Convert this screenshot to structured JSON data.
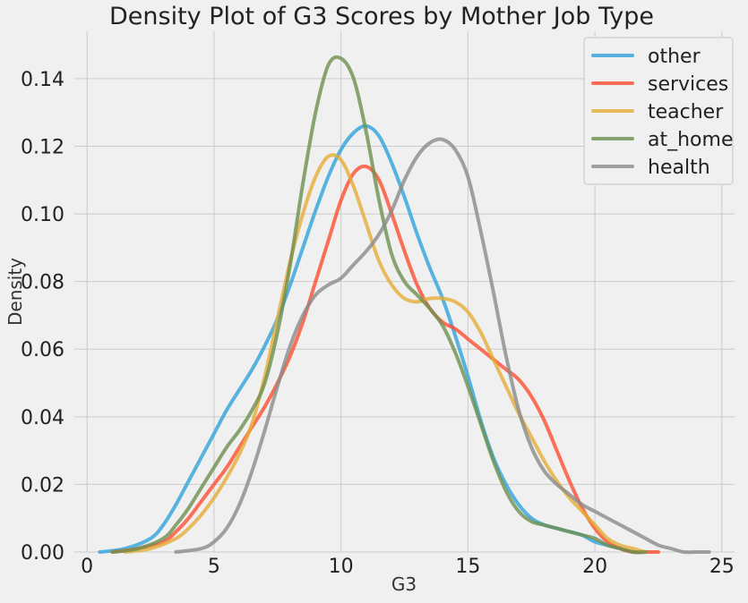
{
  "chart_data": {
    "type": "line",
    "title": "Density Plot of G3 Scores by Mother Job Type",
    "xlabel": "G3",
    "ylabel": "Density",
    "xlim": [
      -0.5,
      25.5
    ],
    "ylim": [
      0,
      0.154
    ],
    "x_ticks": [
      0,
      5,
      10,
      15,
      20,
      25
    ],
    "y_ticks": [
      0.0,
      0.02,
      0.04,
      0.06,
      0.08,
      0.1,
      0.12,
      0.14
    ],
    "x_tick_labels": [
      "0",
      "5",
      "10",
      "15",
      "20",
      "25"
    ],
    "y_tick_labels": [
      "0.00",
      "0.02",
      "0.04",
      "0.06",
      "0.08",
      "0.10",
      "0.12",
      "0.14"
    ],
    "grid": true,
    "legend_position": "top-right",
    "series": [
      {
        "name": "other",
        "color": "#30a2da",
        "x": [
          0.5,
          1.5,
          2.5,
          3.0,
          3.5,
          4.0,
          4.5,
          5.0,
          5.5,
          6.0,
          6.5,
          7.0,
          7.5,
          8.0,
          8.5,
          9.0,
          9.5,
          10.0,
          10.5,
          11.0,
          11.5,
          12.0,
          12.5,
          13.0,
          13.5,
          14.0,
          14.5,
          15.0,
          15.5,
          16.0,
          16.5,
          17.0,
          17.5,
          18.0,
          18.5,
          19.0,
          19.5,
          20.0,
          20.5,
          21.0,
          21.5,
          22.0
        ],
        "y": [
          0.0,
          0.001,
          0.004,
          0.008,
          0.014,
          0.021,
          0.028,
          0.035,
          0.042,
          0.048,
          0.054,
          0.061,
          0.069,
          0.079,
          0.09,
          0.101,
          0.111,
          0.119,
          0.124,
          0.126,
          0.123,
          0.115,
          0.105,
          0.094,
          0.084,
          0.075,
          0.064,
          0.052,
          0.039,
          0.028,
          0.02,
          0.014,
          0.01,
          0.008,
          0.007,
          0.006,
          0.005,
          0.003,
          0.002,
          0.001,
          0.0,
          0.0
        ]
      },
      {
        "name": "services",
        "color": "#fc4f30",
        "x": [
          1.0,
          2.0,
          3.0,
          3.5,
          4.0,
          4.5,
          5.0,
          5.5,
          6.0,
          6.5,
          7.0,
          7.5,
          8.0,
          8.5,
          9.0,
          9.5,
          10.0,
          10.5,
          11.0,
          11.5,
          12.0,
          12.5,
          13.0,
          13.5,
          14.0,
          14.5,
          15.0,
          15.5,
          16.0,
          16.5,
          17.0,
          17.5,
          18.0,
          18.5,
          19.0,
          19.5,
          20.0,
          20.5,
          21.0,
          21.5,
          22.0,
          22.5
        ],
        "y": [
          0.0,
          0.001,
          0.003,
          0.006,
          0.01,
          0.015,
          0.02,
          0.025,
          0.031,
          0.037,
          0.043,
          0.05,
          0.058,
          0.068,
          0.08,
          0.092,
          0.104,
          0.112,
          0.114,
          0.11,
          0.1,
          0.089,
          0.079,
          0.072,
          0.068,
          0.066,
          0.063,
          0.06,
          0.057,
          0.054,
          0.051,
          0.046,
          0.039,
          0.03,
          0.021,
          0.013,
          0.007,
          0.003,
          0.001,
          0.0,
          0.0,
          0.0
        ]
      },
      {
        "name": "teacher",
        "color": "#e5ae38",
        "x": [
          1.5,
          2.5,
          3.5,
          4.0,
          4.5,
          5.0,
          5.5,
          6.0,
          6.5,
          7.0,
          7.5,
          8.0,
          8.5,
          9.0,
          9.5,
          10.0,
          10.5,
          11.0,
          11.5,
          12.0,
          12.5,
          13.0,
          13.5,
          14.0,
          14.5,
          15.0,
          15.5,
          16.0,
          16.5,
          17.0,
          17.5,
          18.0,
          18.5,
          19.0,
          19.5,
          20.0,
          20.5,
          21.0,
          21.5,
          22.0
        ],
        "y": [
          0.0,
          0.001,
          0.004,
          0.007,
          0.011,
          0.016,
          0.022,
          0.029,
          0.038,
          0.052,
          0.069,
          0.086,
          0.1,
          0.111,
          0.117,
          0.116,
          0.108,
          0.097,
          0.086,
          0.079,
          0.075,
          0.074,
          0.075,
          0.075,
          0.074,
          0.071,
          0.065,
          0.057,
          0.049,
          0.041,
          0.034,
          0.027,
          0.021,
          0.016,
          0.012,
          0.008,
          0.004,
          0.002,
          0.001,
          0.0
        ]
      },
      {
        "name": "at_home",
        "color": "#6d904f",
        "x": [
          1.0,
          2.0,
          3.0,
          3.5,
          4.0,
          4.5,
          5.0,
          5.5,
          6.0,
          6.5,
          7.0,
          7.5,
          8.0,
          8.5,
          9.0,
          9.5,
          10.0,
          10.5,
          11.0,
          11.5,
          12.0,
          12.5,
          13.0,
          13.5,
          14.0,
          14.5,
          15.0,
          15.5,
          16.0,
          16.5,
          17.0,
          17.5,
          18.0,
          18.5,
          19.0,
          19.5,
          20.0,
          20.5,
          21.0,
          21.5,
          22.0
        ],
        "y": [
          0.0,
          0.001,
          0.004,
          0.008,
          0.013,
          0.019,
          0.025,
          0.031,
          0.036,
          0.042,
          0.05,
          0.065,
          0.085,
          0.109,
          0.13,
          0.144,
          0.146,
          0.14,
          0.124,
          0.104,
          0.088,
          0.08,
          0.076,
          0.072,
          0.067,
          0.059,
          0.049,
          0.038,
          0.027,
          0.018,
          0.012,
          0.009,
          0.008,
          0.007,
          0.006,
          0.005,
          0.004,
          0.002,
          0.001,
          0.0,
          0.0
        ]
      },
      {
        "name": "health",
        "color": "#8b8b8b",
        "x": [
          3.5,
          4.5,
          5.0,
          5.5,
          6.0,
          6.5,
          7.0,
          7.5,
          8.0,
          8.5,
          9.0,
          9.5,
          10.0,
          10.5,
          11.0,
          11.5,
          12.0,
          12.5,
          13.0,
          13.5,
          14.0,
          14.5,
          15.0,
          15.5,
          16.0,
          16.5,
          17.0,
          17.5,
          18.0,
          18.5,
          19.0,
          19.5,
          20.0,
          20.5,
          21.0,
          21.5,
          22.0,
          22.5,
          23.0,
          23.5,
          24.0,
          24.5
        ],
        "y": [
          0.0,
          0.001,
          0.003,
          0.007,
          0.014,
          0.024,
          0.036,
          0.049,
          0.061,
          0.07,
          0.076,
          0.079,
          0.081,
          0.085,
          0.089,
          0.094,
          0.101,
          0.11,
          0.117,
          0.121,
          0.122,
          0.119,
          0.111,
          0.095,
          0.077,
          0.058,
          0.042,
          0.031,
          0.024,
          0.02,
          0.017,
          0.014,
          0.012,
          0.01,
          0.008,
          0.006,
          0.004,
          0.002,
          0.001,
          0.0,
          0.0,
          0.0
        ]
      }
    ]
  }
}
